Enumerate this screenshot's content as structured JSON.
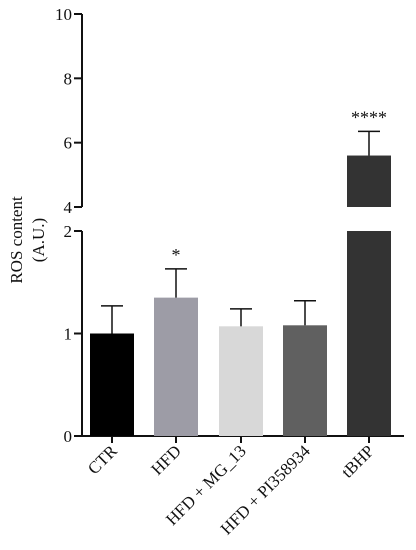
{
  "chart_data": {
    "type": "bar",
    "title": "",
    "xlabel": "",
    "ylabel_line1": "ROS content",
    "ylabel_line2": "(A.U.)",
    "categories": [
      "CTR",
      "HFD",
      "HFD + MG_13",
      "HFD + PI358934",
      "tBHP"
    ],
    "values": [
      1.0,
      1.35,
      1.07,
      1.08,
      5.6
    ],
    "errors": [
      0.27,
      0.28,
      0.17,
      0.24,
      0.75
    ],
    "significance": [
      "",
      "*",
      "",
      "",
      "****"
    ],
    "colors": [
      "#000000",
      "#9d9ca6",
      "#d8d8d8",
      "#606060",
      "#333333"
    ],
    "broken_axis": true,
    "lower_segment": {
      "ylim": [
        0,
        2
      ],
      "ticks": [
        0,
        1,
        2
      ]
    },
    "upper_segment": {
      "ylim": [
        4,
        10
      ],
      "ticks": [
        4,
        6,
        8,
        10
      ]
    },
    "grid": false,
    "legend": "none"
  }
}
